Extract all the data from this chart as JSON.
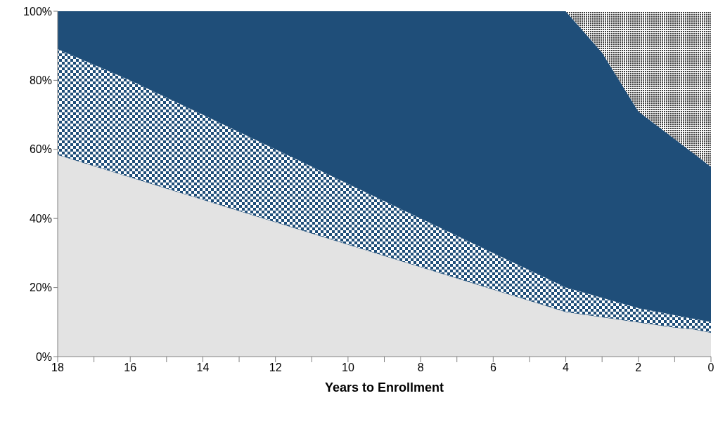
{
  "chart_data": {
    "type": "area",
    "stacked": true,
    "xlabel": "Years to Enrollment",
    "x": [
      18,
      16,
      14,
      12,
      10,
      8,
      6,
      4,
      3,
      2,
      1,
      0.5,
      0
    ],
    "series": [
      {
        "color": "#e3e3e3",
        "values": [
          58.5,
          52,
          45.5,
          39,
          32.5,
          26,
          19.5,
          13,
          11.5,
          10,
          8.5,
          8,
          7
        ]
      },
      {
        "color": "#1f4e79",
        "values": [
          30.5,
          28,
          24.5,
          21,
          17.5,
          14,
          10.5,
          7,
          5.5,
          4,
          3.5,
          3,
          3
        ]
      },
      {
        "color": "#1f4e79",
        "values": [
          11,
          20,
          30,
          40,
          50,
          60,
          70,
          80,
          71,
          57,
          51,
          48,
          45
        ]
      },
      {
        "color": "#404040",
        "values": [
          0,
          0,
          0,
          0,
          0,
          0,
          0,
          0,
          12,
          29,
          37,
          41,
          45
        ]
      }
    ],
    "xlim": [
      18,
      0
    ],
    "xticks": [
      18,
      {
        "value": 17,
        "label": null
      },
      16,
      {
        "value": 15,
        "label": null
      },
      14,
      {
        "value": 13,
        "label": null
      },
      12,
      {
        "value": 11,
        "label": null
      },
      10,
      {
        "value": 9,
        "label": null
      },
      8,
      {
        "value": 7,
        "label": null
      },
      6,
      {
        "value": 5,
        "label": null
      },
      4,
      {
        "value": 3,
        "label": null
      },
      2,
      {
        "value": 1,
        "label": null
      },
      0
    ],
    "ylim": [
      0,
      100
    ],
    "yticks": [
      {
        "value": 0,
        "label": "0%"
      },
      {
        "value": 20,
        "label": "20%"
      },
      {
        "value": 40,
        "label": "40%"
      },
      {
        "value": 60,
        "label": "60%"
      },
      {
        "value": 80,
        "label": "80%"
      },
      {
        "value": 100,
        "label": "100%"
      }
    ],
    "grid": false,
    "legend": false
  }
}
